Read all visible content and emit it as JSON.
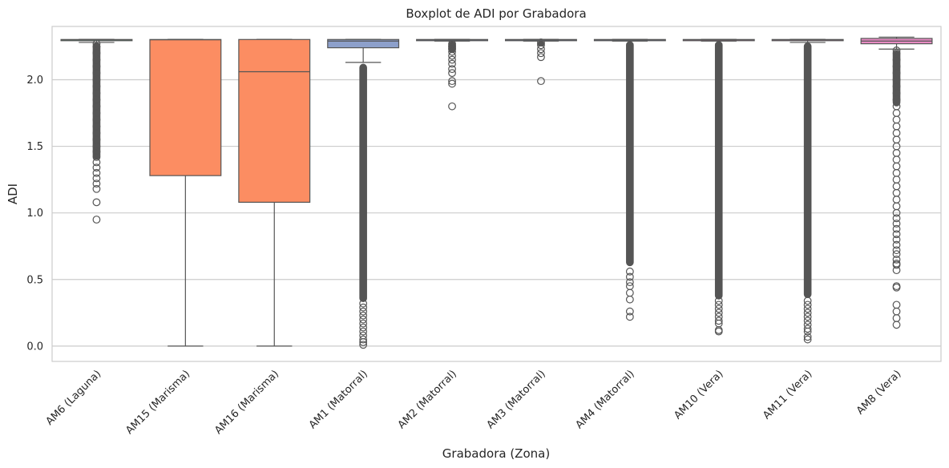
{
  "chart_data": {
    "type": "boxplot",
    "title": "Boxplot de ADI por Grabadora",
    "xlabel": "Grabadora (Zona)",
    "ylabel": "ADI",
    "ylim": [
      -0.115,
      2.4
    ],
    "yticks": [
      "0.0",
      "0.5",
      "1.0",
      "1.5",
      "2.0"
    ],
    "grid": "horizontal",
    "colors": {
      "Laguna": "#66c2a5",
      "Marisma": "#fc8d62",
      "Matorral": "#8da0cb",
      "Vera": "#e78ac3",
      "median_line": "#555555",
      "grid": "#cccccc",
      "spine": "#cccccc"
    },
    "categories": [
      "AM6 (Laguna)",
      "AM15 (Marisma)",
      "AM16 (Marisma)",
      "AM1 (Matorral)",
      "AM2 (Matorral)",
      "AM3 (Matorral)",
      "AM4 (Matorral)",
      "AM10 (Vera)",
      "AM11 (Vera)",
      "AM8 (Vera)"
    ],
    "boxes": [
      {
        "category": "AM6 (Laguna)",
        "zone": "Laguna",
        "whislo": 2.28,
        "q1": 2.295,
        "med": 2.3,
        "q3": 2.302,
        "whishi": 2.303,
        "fliers": [
          0.95,
          1.08,
          1.18,
          1.22,
          1.26,
          1.3,
          1.34,
          1.38,
          1.42,
          1.46,
          1.5,
          1.55,
          1.6,
          1.65,
          1.7,
          1.75,
          1.8,
          1.85,
          1.9,
          1.95,
          2.0,
          2.05,
          2.1,
          2.15,
          2.2,
          2.25,
          2.27
        ],
        "flier_band": [
          1.4,
          2.28
        ]
      },
      {
        "category": "AM15 (Marisma)",
        "zone": "Marisma",
        "whislo": 0.0,
        "q1": 1.28,
        "med": 2.3,
        "q3": 2.302,
        "whishi": 2.303,
        "fliers": []
      },
      {
        "category": "AM16 (Marisma)",
        "zone": "Marisma",
        "whislo": 0.0,
        "q1": 1.08,
        "med": 2.06,
        "q3": 2.302,
        "whishi": 2.303,
        "fliers": []
      },
      {
        "category": "AM1 (Matorral)",
        "zone": "Matorral",
        "whislo": 2.13,
        "q1": 2.24,
        "med": 2.29,
        "q3": 2.302,
        "whishi": 2.303,
        "fliers": [
          0.01,
          0.03,
          0.05,
          0.08,
          0.11,
          0.14,
          0.17,
          0.2,
          0.23,
          0.26,
          0.29,
          0.32
        ],
        "flier_band": [
          0.33,
          2.12
        ]
      },
      {
        "category": "AM2 (Matorral)",
        "zone": "Matorral",
        "whislo": 2.29,
        "q1": 2.298,
        "med": 2.3,
        "q3": 2.302,
        "whishi": 2.303,
        "fliers": [
          1.8,
          1.97,
          1.99,
          2.05,
          2.08,
          2.12,
          2.15,
          2.18,
          2.21,
          2.23,
          2.25,
          2.27
        ],
        "flier_band": [
          2.2,
          2.29
        ]
      },
      {
        "category": "AM3 (Matorral)",
        "zone": "Matorral",
        "whislo": 2.29,
        "q1": 2.298,
        "med": 2.3,
        "q3": 2.302,
        "whishi": 2.303,
        "fliers": [
          1.99,
          2.17,
          2.2,
          2.23,
          2.26,
          2.28
        ],
        "flier_band": [
          2.25,
          2.29
        ]
      },
      {
        "category": "AM4 (Matorral)",
        "zone": "Matorral",
        "whislo": 2.29,
        "q1": 2.295,
        "med": 2.3,
        "q3": 2.302,
        "whishi": 2.303,
        "fliers": [
          0.22,
          0.26,
          0.35,
          0.4,
          0.45,
          0.48,
          0.52,
          0.56
        ],
        "flier_band": [
          0.6,
          2.29
        ]
      },
      {
        "category": "AM10 (Vera)",
        "zone": "Vera",
        "whislo": 2.29,
        "q1": 2.298,
        "med": 2.3,
        "q3": 2.302,
        "whishi": 2.303,
        "fliers": [
          0.11,
          0.12,
          0.17,
          0.19,
          0.22,
          0.25,
          0.28,
          0.31,
          0.34
        ],
        "flier_band": [
          0.35,
          2.29
        ]
      },
      {
        "category": "AM11 (Vera)",
        "zone": "Vera",
        "whislo": 2.28,
        "q1": 2.295,
        "med": 2.3,
        "q3": 2.302,
        "whishi": 2.303,
        "fliers": [
          0.05,
          0.07,
          0.11,
          0.13,
          0.16,
          0.19,
          0.22,
          0.25,
          0.28,
          0.31,
          0.34
        ],
        "flier_band": [
          0.36,
          2.28
        ]
      },
      {
        "category": "AM8 (Vera)",
        "zone": "Vera",
        "whislo": 2.23,
        "q1": 2.27,
        "med": 2.29,
        "q3": 2.31,
        "whishi": 2.32,
        "fliers": [
          0.16,
          0.21,
          0.26,
          0.31,
          0.44,
          0.45,
          0.57,
          0.61,
          0.62,
          0.65,
          0.69,
          0.72,
          0.76,
          0.8,
          0.84,
          0.88,
          0.92,
          0.96,
          1.0,
          1.05,
          1.1,
          1.15,
          1.2,
          1.25,
          1.3,
          1.35,
          1.4,
          1.45,
          1.5,
          1.55,
          1.6,
          1.65,
          1.7,
          1.75,
          1.8,
          1.85,
          1.9,
          1.95,
          2.0,
          2.05,
          2.1,
          2.15,
          2.2,
          2.22
        ],
        "flier_band": [
          1.8,
          2.22
        ]
      }
    ]
  }
}
